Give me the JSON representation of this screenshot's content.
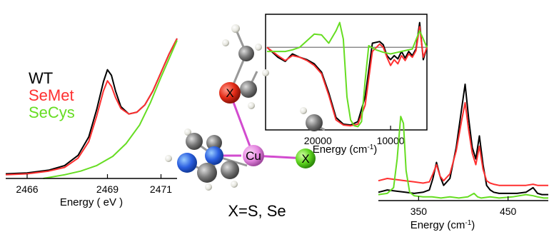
{
  "colors": {
    "wt": "#000000",
    "semet": "#ff3030",
    "secys": "#66dd22",
    "baseline": "#777777"
  },
  "legend": [
    {
      "label": "WT",
      "color": "#000000"
    },
    {
      "label": "SeMet",
      "color": "#ff3030"
    },
    {
      "label": "SeCys",
      "color": "#66dd22"
    }
  ],
  "caption": "X=S, Se",
  "molecule": {
    "atom_x": "X",
    "atom_cu": "Cu"
  },
  "chart_data": [
    {
      "type": "line",
      "xlabel": "Energy ( eV )",
      "ylabel": "",
      "xlim": [
        2465.2,
        2471.6
      ],
      "ylim": [
        0,
        1.55
      ],
      "xticks": [
        2466,
        2469,
        2471
      ],
      "grid": false,
      "series": [
        {
          "name": "WT",
          "color": "#000000",
          "x": [
            2465.2,
            2466.0,
            2466.8,
            2467.4,
            2467.9,
            2468.3,
            2468.6,
            2468.85,
            2469.0,
            2469.15,
            2469.3,
            2469.5,
            2469.8,
            2470.1,
            2470.4,
            2470.7,
            2471.0,
            2471.3,
            2471.6
          ],
          "y": [
            0.05,
            0.06,
            0.09,
            0.14,
            0.25,
            0.45,
            0.75,
            1.05,
            1.18,
            1.12,
            0.95,
            0.78,
            0.7,
            0.72,
            0.8,
            0.95,
            1.15,
            1.35,
            1.52
          ]
        },
        {
          "name": "SeMet",
          "color": "#ff3030",
          "x": [
            2465.2,
            2466.0,
            2466.8,
            2467.4,
            2467.9,
            2468.3,
            2468.6,
            2468.85,
            2469.0,
            2469.15,
            2469.3,
            2469.5,
            2469.8,
            2470.1,
            2470.4,
            2470.7,
            2471.0,
            2471.3,
            2471.6
          ],
          "y": [
            0.04,
            0.05,
            0.08,
            0.12,
            0.22,
            0.4,
            0.68,
            0.95,
            1.06,
            1.0,
            0.88,
            0.76,
            0.7,
            0.72,
            0.8,
            0.95,
            1.15,
            1.35,
            1.52
          ]
        },
        {
          "name": "SeCys",
          "color": "#66dd22",
          "x": [
            2466.6,
            2467.4,
            2468.0,
            2468.6,
            2469.2,
            2469.7,
            2470.2,
            2470.6,
            2471.0,
            2471.3,
            2471.6
          ],
          "y": [
            0.0,
            0.04,
            0.08,
            0.14,
            0.24,
            0.38,
            0.58,
            0.82,
            1.1,
            1.3,
            1.5
          ]
        }
      ]
    },
    {
      "type": "line",
      "xlabel": "Energy (cm",
      "xlabel_sup": "-1",
      "xlabel_end": ")",
      "xlim": [
        27000,
        5000
      ],
      "ylim": [
        -1.0,
        0.4
      ],
      "xticks": [
        20000,
        10000
      ],
      "grid": false,
      "baseline": 0,
      "series": [
        {
          "name": "WT",
          "color": "#000000",
          "x": [
            27000,
            25500,
            24500,
            23500,
            22500,
            21500,
            20500,
            19500,
            18500,
            17500,
            16500,
            15500,
            14500,
            13500,
            12500,
            11500,
            11000,
            10500,
            10000,
            9500,
            9000,
            8500,
            8000,
            7500,
            7000,
            6500,
            6000,
            5500,
            5000
          ],
          "y": [
            0.0,
            -0.12,
            -0.17,
            -0.08,
            -0.12,
            -0.15,
            -0.2,
            -0.3,
            -0.55,
            -0.85,
            -0.93,
            -0.94,
            -0.9,
            -0.6,
            0.05,
            0.07,
            0.03,
            -0.1,
            -0.15,
            -0.1,
            -0.14,
            -0.05,
            -0.13,
            -0.05,
            -0.1,
            -0.02,
            0.3,
            -0.15,
            0.0
          ]
        },
        {
          "name": "SeMet",
          "color": "#ff3030",
          "x": [
            27000,
            25500,
            24500,
            23500,
            22500,
            21500,
            20500,
            19500,
            18500,
            17500,
            16500,
            15500,
            14500,
            13500,
            12500,
            11500,
            11000,
            10500,
            10000,
            9500,
            9000,
            8500,
            8000,
            7500,
            7000,
            6500,
            6000,
            5500,
            5000
          ],
          "y": [
            0.0,
            -0.1,
            -0.16,
            -0.1,
            -0.12,
            -0.16,
            -0.22,
            -0.32,
            -0.58,
            -0.88,
            -0.94,
            -0.95,
            -0.93,
            -0.7,
            -0.05,
            0.04,
            0.0,
            -0.12,
            -0.22,
            -0.15,
            -0.2,
            -0.1,
            -0.16,
            -0.08,
            -0.12,
            -0.04,
            0.25,
            -0.12,
            0.0
          ]
        },
        {
          "name": "SeCys",
          "color": "#66dd22",
          "x": [
            27000,
            25500,
            24500,
            23500,
            22500,
            21500,
            20500,
            19500,
            18500,
            17500,
            17000,
            16500,
            16000,
            15500,
            15000,
            14500,
            14000,
            13500,
            13000,
            12000,
            11000,
            10000,
            9000,
            8000,
            7000,
            6000,
            5000
          ],
          "y": [
            -0.05,
            -0.05,
            -0.05,
            -0.03,
            0.0,
            0.08,
            0.16,
            0.15,
            0.05,
            0.2,
            0.3,
            0.1,
            -0.6,
            -0.88,
            -0.95,
            -0.96,
            -0.9,
            -0.4,
            0.02,
            -0.03,
            -0.06,
            -0.08,
            -0.06,
            -0.04,
            -0.02,
            0.2,
            0.0
          ]
        }
      ]
    },
    {
      "type": "line",
      "xlabel": "Energy (cm",
      "xlabel_sup": "-1",
      "xlabel_end": ")",
      "xlim": [
        305,
        495
      ],
      "ylim": [
        0,
        1.0
      ],
      "xticks": [
        350,
        450
      ],
      "grid": false,
      "series": [
        {
          "name": "WT",
          "color": "#000000",
          "x": [
            305,
            315,
            325,
            335,
            345,
            355,
            362,
            366,
            370,
            374,
            378,
            385,
            392,
            398,
            402,
            406,
            410,
            414,
            418,
            422,
            426,
            430,
            434,
            440,
            450,
            460,
            470,
            478,
            483,
            488,
            495
          ],
          "y": [
            0.06,
            0.08,
            0.07,
            0.06,
            0.05,
            0.06,
            0.08,
            0.18,
            0.32,
            0.2,
            0.12,
            0.18,
            0.45,
            0.78,
            1.0,
            0.7,
            0.45,
            0.35,
            0.55,
            0.3,
            0.12,
            0.08,
            0.06,
            0.05,
            0.05,
            0.05,
            0.06,
            0.1,
            0.05,
            0.04,
            0.04
          ]
        },
        {
          "name": "SeMet",
          "color": "#ff3030",
          "x": [
            305,
            315,
            325,
            335,
            345,
            355,
            362,
            366,
            370,
            374,
            378,
            385,
            392,
            398,
            402,
            406,
            410,
            414,
            418,
            422,
            426,
            430,
            434,
            440,
            450,
            460,
            470,
            478,
            483,
            488,
            495
          ],
          "y": [
            0.16,
            0.18,
            0.17,
            0.16,
            0.15,
            0.14,
            0.15,
            0.22,
            0.3,
            0.2,
            0.16,
            0.22,
            0.42,
            0.68,
            0.84,
            0.6,
            0.4,
            0.3,
            0.46,
            0.26,
            0.16,
            0.14,
            0.13,
            0.12,
            0.12,
            0.12,
            0.12,
            0.13,
            0.12,
            0.12,
            0.12
          ]
        },
        {
          "name": "SeCys",
          "color": "#66dd22",
          "x": [
            305,
            315,
            322,
            326,
            330,
            333,
            336,
            340,
            345,
            355,
            365,
            375,
            385,
            395,
            405,
            412,
            416,
            420,
            430,
            440,
            455,
            470,
            478,
            483,
            490,
            495
          ],
          "y": [
            0.04,
            0.05,
            0.1,
            0.35,
            0.72,
            0.66,
            0.25,
            0.06,
            0.03,
            0.02,
            0.02,
            0.01,
            0.02,
            0.01,
            0.02,
            0.05,
            0.02,
            0.01,
            0.02,
            0.01,
            0.02,
            0.04,
            0.03,
            0.02,
            0.01,
            0.01
          ]
        }
      ]
    }
  ]
}
